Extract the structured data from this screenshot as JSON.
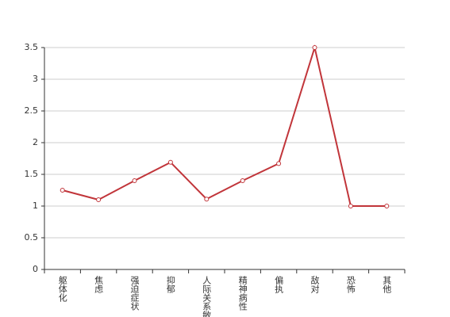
{
  "chart_data": {
    "type": "line",
    "categories": [
      "躯体化",
      "焦虑",
      "强迫症状",
      "抑郁",
      "人际关系敏感",
      "精神病性",
      "偏执",
      "敌对",
      "恐怖",
      "其他"
    ],
    "series": [
      {
        "values": [
          1.25,
          1.1,
          1.4,
          1.69,
          1.11,
          1.4,
          1.67,
          3.5,
          1.0,
          1.0
        ],
        "color": "#c1353a"
      }
    ],
    "ylim": [
      0,
      3.5
    ],
    "yticks": [
      0,
      0.5,
      1,
      1.5,
      2,
      2.5,
      3,
      3.5
    ],
    "grid": true
  }
}
